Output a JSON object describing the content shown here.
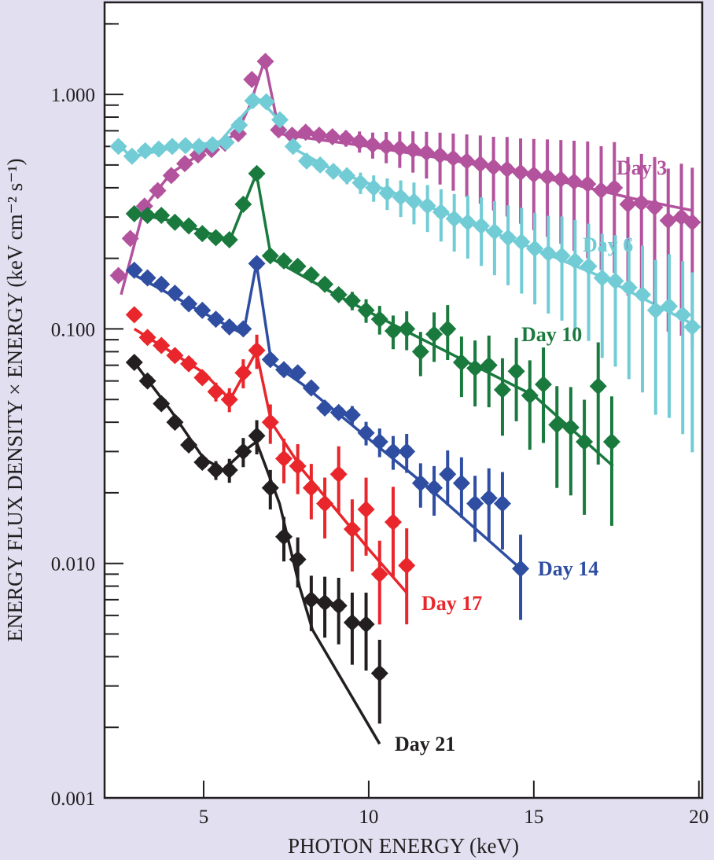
{
  "chart_data": {
    "type": "scatter",
    "title": "",
    "xlabel": "PHOTON ENERGY (keV)",
    "ylabel": "ENERGY FLUX DENSITY × ENERGY (keV cm⁻² s⁻¹)",
    "xlim": [
      2.0,
      20.1
    ],
    "ylim": [
      0.001,
      2.47
    ],
    "yscale": "log",
    "x_ticks": [
      5,
      10,
      15,
      20
    ],
    "x_tick_labels": [
      "5",
      "10",
      "15",
      "20"
    ],
    "y_ticks": [
      0.001,
      0.01,
      0.1,
      1.0
    ],
    "y_tick_labels": [
      "0.001",
      "0.010",
      "0.100",
      "1.000"
    ],
    "grid": false,
    "legend": "inline labels at right end of each series",
    "series": [
      {
        "name": "Day 3",
        "color": "#b3529d",
        "points": [
          [
            2.42,
            0.169
          ],
          [
            2.78,
            0.243
          ],
          [
            3.21,
            0.334
          ],
          [
            3.61,
            0.389
          ],
          [
            4.02,
            0.451
          ],
          [
            4.43,
            0.507
          ],
          [
            4.83,
            0.552
          ],
          [
            5.24,
            0.582
          ],
          [
            5.65,
            0.619
          ],
          [
            6.05,
            0.68
          ],
          [
            6.46,
            1.158
          ],
          [
            6.87,
            1.383
          ],
          [
            7.27,
            0.706
          ],
          [
            7.68,
            0.67
          ],
          [
            8.09,
            0.69
          ],
          [
            8.5,
            0.67
          ],
          [
            8.9,
            0.66
          ],
          [
            9.31,
            0.65
          ],
          [
            9.72,
            0.63
          ],
          [
            10.12,
            0.61
          ],
          [
            10.53,
            0.6
          ],
          [
            10.94,
            0.59
          ],
          [
            11.34,
            0.58
          ],
          [
            11.75,
            0.565
          ],
          [
            12.16,
            0.55
          ],
          [
            12.56,
            0.535
          ],
          [
            12.97,
            0.52
          ],
          [
            13.38,
            0.505
          ],
          [
            13.78,
            0.49
          ],
          [
            14.19,
            0.48
          ],
          [
            14.6,
            0.465
          ],
          [
            15.0,
            0.455
          ],
          [
            15.41,
            0.445
          ],
          [
            15.82,
            0.435
          ],
          [
            16.22,
            0.425
          ],
          [
            16.63,
            0.415
          ],
          [
            17.04,
            0.39
          ],
          [
            17.44,
            0.4
          ],
          [
            17.85,
            0.34
          ],
          [
            18.26,
            0.345
          ],
          [
            18.66,
            0.33
          ],
          [
            19.07,
            0.29
          ],
          [
            19.47,
            0.3
          ],
          [
            19.8,
            0.285
          ]
        ],
        "model": [
          [
            2.5,
            0.14
          ],
          [
            3.2,
            0.33
          ],
          [
            4.0,
            0.46
          ],
          [
            5.0,
            0.57
          ],
          [
            6.0,
            0.68
          ],
          [
            6.4,
            0.9
          ],
          [
            6.85,
            1.4
          ],
          [
            7.3,
            0.68
          ],
          [
            8.0,
            0.655
          ],
          [
            10.0,
            0.6
          ],
          [
            12.0,
            0.54
          ],
          [
            14.0,
            0.48
          ],
          [
            16.0,
            0.42
          ],
          [
            18.0,
            0.36
          ],
          [
            19.8,
            0.32
          ]
        ]
      },
      {
        "name": "Day 6",
        "color": "#72ccd6",
        "points": [
          [
            2.42,
            0.6
          ],
          [
            2.83,
            0.545
          ],
          [
            3.23,
            0.575
          ],
          [
            3.64,
            0.585
          ],
          [
            4.05,
            0.6
          ],
          [
            4.45,
            0.605
          ],
          [
            4.86,
            0.6
          ],
          [
            5.27,
            0.61
          ],
          [
            5.68,
            0.625
          ],
          [
            6.08,
            0.74
          ],
          [
            6.49,
            0.94
          ],
          [
            6.9,
            0.93
          ],
          [
            7.31,
            0.78
          ],
          [
            7.71,
            0.6
          ],
          [
            8.12,
            0.52
          ],
          [
            8.53,
            0.5
          ],
          [
            8.93,
            0.47
          ],
          [
            9.34,
            0.45
          ],
          [
            9.75,
            0.42
          ],
          [
            10.15,
            0.4
          ],
          [
            10.56,
            0.38
          ],
          [
            10.97,
            0.365
          ],
          [
            11.37,
            0.35
          ],
          [
            11.78,
            0.335
          ],
          [
            12.19,
            0.315
          ],
          [
            12.59,
            0.295
          ],
          [
            13.0,
            0.285
          ],
          [
            13.41,
            0.275
          ],
          [
            13.81,
            0.26
          ],
          [
            14.22,
            0.245
          ],
          [
            14.63,
            0.235
          ],
          [
            15.03,
            0.22
          ],
          [
            15.44,
            0.21
          ],
          [
            15.85,
            0.205
          ],
          [
            16.25,
            0.195
          ],
          [
            16.66,
            0.185
          ],
          [
            17.07,
            0.165
          ],
          [
            17.47,
            0.16
          ],
          [
            17.88,
            0.15
          ],
          [
            18.29,
            0.14
          ],
          [
            18.69,
            0.12
          ],
          [
            19.1,
            0.125
          ],
          [
            19.51,
            0.115
          ],
          [
            19.8,
            0.102
          ]
        ],
        "model": [
          [
            2.5,
            0.6
          ],
          [
            2.8,
            0.54
          ],
          [
            4.0,
            0.59
          ],
          [
            5.5,
            0.63
          ],
          [
            6.3,
            0.85
          ],
          [
            6.7,
            0.95
          ],
          [
            7.2,
            0.8
          ],
          [
            7.8,
            0.58
          ],
          [
            9.0,
            0.47
          ],
          [
            11.0,
            0.37
          ],
          [
            13.0,
            0.285
          ],
          [
            15.0,
            0.22
          ],
          [
            17.0,
            0.168
          ],
          [
            19.8,
            0.105
          ]
        ]
      },
      {
        "name": "Day 10",
        "color": "#1a7a3e",
        "points": [
          [
            2.9,
            0.31
          ],
          [
            3.3,
            0.305
          ],
          [
            3.72,
            0.305
          ],
          [
            4.13,
            0.285
          ],
          [
            4.55,
            0.275
          ],
          [
            4.96,
            0.255
          ],
          [
            5.37,
            0.245
          ],
          [
            5.78,
            0.24
          ],
          [
            6.2,
            0.34
          ],
          [
            6.61,
            0.46
          ],
          [
            7.02,
            0.205
          ],
          [
            7.43,
            0.195
          ],
          [
            7.85,
            0.185
          ],
          [
            8.26,
            0.17
          ],
          [
            8.67,
            0.155
          ],
          [
            9.09,
            0.14
          ],
          [
            9.5,
            0.132
          ],
          [
            9.92,
            0.12
          ],
          [
            10.33,
            0.11
          ],
          [
            10.74,
            0.098
          ],
          [
            11.15,
            0.1
          ],
          [
            11.57,
            0.08
          ],
          [
            11.98,
            0.095
          ],
          [
            12.39,
            0.1
          ],
          [
            12.81,
            0.072
          ],
          [
            13.22,
            0.068
          ],
          [
            13.64,
            0.07
          ],
          [
            14.05,
            0.055
          ],
          [
            14.47,
            0.066
          ],
          [
            14.88,
            0.052
          ],
          [
            15.29,
            0.058
          ],
          [
            15.7,
            0.039
          ],
          [
            16.12,
            0.038
          ],
          [
            16.53,
            0.033
          ],
          [
            16.95,
            0.057
          ],
          [
            17.36,
            0.033
          ]
        ],
        "model": [
          [
            2.9,
            0.31
          ],
          [
            4.0,
            0.29
          ],
          [
            5.0,
            0.26
          ],
          [
            5.8,
            0.24
          ],
          [
            6.6,
            0.46
          ],
          [
            7.05,
            0.2
          ],
          [
            9.0,
            0.14
          ],
          [
            11.0,
            0.1
          ],
          [
            13.0,
            0.072
          ],
          [
            15.0,
            0.052
          ],
          [
            17.4,
            0.026
          ]
        ]
      },
      {
        "name": "Day 14",
        "color": "#2f4ea2",
        "points": [
          [
            2.9,
            0.178
          ],
          [
            3.3,
            0.165
          ],
          [
            3.72,
            0.155
          ],
          [
            4.13,
            0.142
          ],
          [
            4.55,
            0.128
          ],
          [
            4.96,
            0.12
          ],
          [
            5.37,
            0.11
          ],
          [
            5.78,
            0.102
          ],
          [
            6.2,
            0.1
          ],
          [
            6.61,
            0.19
          ],
          [
            7.02,
            0.074
          ],
          [
            7.43,
            0.067
          ],
          [
            7.85,
            0.065
          ],
          [
            8.26,
            0.056
          ],
          [
            8.67,
            0.046
          ],
          [
            9.09,
            0.044
          ],
          [
            9.5,
            0.043
          ],
          [
            9.92,
            0.036
          ],
          [
            10.33,
            0.033
          ],
          [
            10.74,
            0.03
          ],
          [
            11.15,
            0.03
          ],
          [
            11.57,
            0.022
          ],
          [
            11.98,
            0.021
          ],
          [
            12.39,
            0.024
          ],
          [
            12.81,
            0.022
          ],
          [
            13.22,
            0.018
          ],
          [
            13.64,
            0.019
          ],
          [
            14.05,
            0.018
          ],
          [
            14.6,
            0.0095
          ]
        ],
        "model": [
          [
            2.9,
            0.17
          ],
          [
            4.0,
            0.14
          ],
          [
            5.0,
            0.117
          ],
          [
            6.2,
            0.095
          ],
          [
            6.6,
            0.19
          ],
          [
            7.05,
            0.072
          ],
          [
            8.0,
            0.058
          ],
          [
            10.0,
            0.034
          ],
          [
            12.0,
            0.02
          ],
          [
            14.6,
            0.0095
          ]
        ]
      },
      {
        "name": "Day 17",
        "color": "#e8262b",
        "points": [
          [
            2.9,
            0.115
          ],
          [
            3.3,
            0.092
          ],
          [
            3.72,
            0.085
          ],
          [
            4.13,
            0.077
          ],
          [
            4.55,
            0.071
          ],
          [
            4.96,
            0.062
          ],
          [
            5.37,
            0.054
          ],
          [
            5.78,
            0.05
          ],
          [
            6.2,
            0.065
          ],
          [
            6.61,
            0.081
          ],
          [
            7.02,
            0.04
          ],
          [
            7.43,
            0.028
          ],
          [
            7.85,
            0.026
          ],
          [
            8.26,
            0.021
          ],
          [
            8.67,
            0.018
          ],
          [
            9.09,
            0.024
          ],
          [
            9.5,
            0.014
          ],
          [
            9.92,
            0.017
          ],
          [
            10.33,
            0.009
          ],
          [
            10.74,
            0.015
          ],
          [
            11.15,
            0.0098
          ]
        ],
        "model": [
          [
            2.9,
            0.1
          ],
          [
            4.0,
            0.08
          ],
          [
            5.0,
            0.065
          ],
          [
            5.8,
            0.05
          ],
          [
            6.6,
            0.08
          ],
          [
            7.05,
            0.04
          ],
          [
            8.0,
            0.025
          ],
          [
            9.0,
            0.017
          ],
          [
            10.0,
            0.0115
          ],
          [
            11.15,
            0.0075
          ]
        ]
      },
      {
        "name": "Day 21",
        "color": "#231f20",
        "points": [
          [
            2.9,
            0.072
          ],
          [
            3.3,
            0.06
          ],
          [
            3.72,
            0.048
          ],
          [
            4.13,
            0.04
          ],
          [
            4.55,
            0.032
          ],
          [
            4.96,
            0.027
          ],
          [
            5.37,
            0.025
          ],
          [
            5.78,
            0.025
          ],
          [
            6.2,
            0.03
          ],
          [
            6.61,
            0.035
          ],
          [
            7.02,
            0.021
          ],
          [
            7.43,
            0.013
          ],
          [
            7.85,
            0.0104
          ],
          [
            8.26,
            0.007
          ],
          [
            8.67,
            0.0068
          ],
          [
            9.09,
            0.0066
          ],
          [
            9.5,
            0.0056
          ],
          [
            9.92,
            0.0055
          ],
          [
            10.33,
            0.0034
          ]
        ],
        "model": [
          [
            2.9,
            0.072
          ],
          [
            4.0,
            0.045
          ],
          [
            5.0,
            0.028
          ],
          [
            5.6,
            0.025
          ],
          [
            6.2,
            0.03
          ],
          [
            6.6,
            0.033
          ],
          [
            7.3,
            0.018
          ],
          [
            7.9,
            0.008
          ],
          [
            8.3,
            0.0052
          ],
          [
            10.33,
            0.0017
          ]
        ]
      }
    ]
  }
}
